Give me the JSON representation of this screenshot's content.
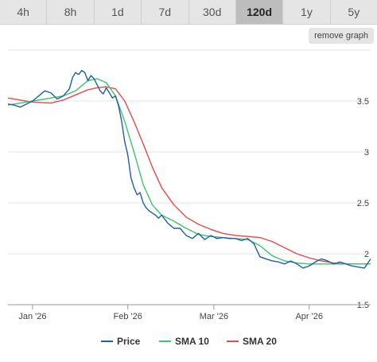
{
  "timeframe_tabs": [
    {
      "label": "4h",
      "active": false
    },
    {
      "label": "8h",
      "active": false
    },
    {
      "label": "1d",
      "active": false
    },
    {
      "label": "7d",
      "active": false
    },
    {
      "label": "30d",
      "active": false
    },
    {
      "label": "120d",
      "active": true
    },
    {
      "label": "1y",
      "active": false
    },
    {
      "label": "5y",
      "active": false
    }
  ],
  "remove_graph_label": "remove graph",
  "chart_data": {
    "type": "line",
    "x_ticks": [
      "Jan '26",
      "Feb '26",
      "Mar '26",
      "Apr '26"
    ],
    "y_ticks": [
      "1.5",
      "2",
      "2.5",
      "3",
      "3.5"
    ],
    "ylim": [
      1.5,
      4.0
    ],
    "x_range_days": [
      0,
      118
    ],
    "x_tick_days": [
      8,
      39,
      67,
      98
    ],
    "grid": "horizontal",
    "legend_position": "bottom",
    "series": [
      {
        "name": "Price",
        "color": "#1f5fa8",
        "x": [
          0,
          2,
          4,
          6,
          8,
          10,
          12,
          14,
          16,
          18,
          20,
          21,
          22,
          23,
          24,
          25,
          26,
          27,
          28,
          29,
          30,
          31,
          32,
          33,
          34,
          35,
          36,
          37,
          38,
          39,
          40,
          41,
          42,
          43,
          44,
          45,
          46,
          47,
          48,
          49,
          50,
          52,
          54,
          56,
          58,
          60,
          62,
          64,
          66,
          68,
          70,
          72,
          74,
          76,
          78,
          80,
          82,
          84,
          86,
          88,
          90,
          92,
          94,
          96,
          98,
          100,
          102,
          104,
          106,
          108,
          110,
          112,
          114,
          116,
          118
        ],
        "values": [
          3.47,
          3.46,
          3.44,
          3.47,
          3.5,
          3.55,
          3.6,
          3.58,
          3.52,
          3.55,
          3.62,
          3.73,
          3.78,
          3.76,
          3.8,
          3.78,
          3.7,
          3.75,
          3.72,
          3.66,
          3.6,
          3.57,
          3.63,
          3.58,
          3.53,
          3.55,
          3.45,
          3.3,
          3.1,
          2.97,
          2.75,
          2.65,
          2.58,
          2.6,
          2.5,
          2.45,
          2.42,
          2.4,
          2.38,
          2.35,
          2.38,
          2.3,
          2.25,
          2.25,
          2.18,
          2.15,
          2.2,
          2.14,
          2.18,
          2.15,
          2.16,
          2.15,
          2.15,
          2.13,
          2.15,
          2.1,
          1.97,
          1.95,
          1.93,
          1.92,
          1.9,
          1.93,
          1.9,
          1.86,
          1.88,
          1.92,
          1.95,
          1.93,
          1.9,
          1.92,
          1.9,
          1.88,
          1.87,
          1.86,
          1.95
        ]
      },
      {
        "name": "SMA 10",
        "color": "#3ec46d",
        "x": [
          0,
          8,
          14,
          18,
          22,
          26,
          29,
          32,
          35,
          38,
          41,
          44,
          47,
          50,
          54,
          58,
          62,
          66,
          70,
          74,
          78,
          82,
          86,
          90,
          94,
          98,
          102,
          106,
          110,
          114,
          118
        ],
        "values": [
          3.46,
          3.5,
          3.53,
          3.55,
          3.6,
          3.7,
          3.72,
          3.68,
          3.55,
          3.3,
          3.0,
          2.68,
          2.48,
          2.38,
          2.32,
          2.25,
          2.19,
          2.17,
          2.16,
          2.15,
          2.14,
          2.08,
          1.98,
          1.93,
          1.91,
          1.9,
          1.9,
          1.9,
          1.9,
          1.9,
          1.9
        ]
      },
      {
        "name": "SMA 20",
        "color": "#e8494a",
        "x": [
          0,
          8,
          14,
          18,
          22,
          26,
          29,
          32,
          35,
          38,
          41,
          44,
          47,
          50,
          54,
          58,
          62,
          66,
          70,
          74,
          78,
          82,
          86,
          90,
          94,
          98,
          102,
          106,
          110,
          114,
          118
        ],
        "values": [
          3.53,
          3.49,
          3.48,
          3.51,
          3.56,
          3.61,
          3.63,
          3.64,
          3.62,
          3.5,
          3.3,
          3.08,
          2.85,
          2.65,
          2.48,
          2.36,
          2.29,
          2.24,
          2.2,
          2.18,
          2.17,
          2.16,
          2.12,
          2.06,
          2.0,
          1.96,
          1.93,
          1.91,
          1.9,
          1.9,
          1.9
        ]
      }
    ]
  }
}
